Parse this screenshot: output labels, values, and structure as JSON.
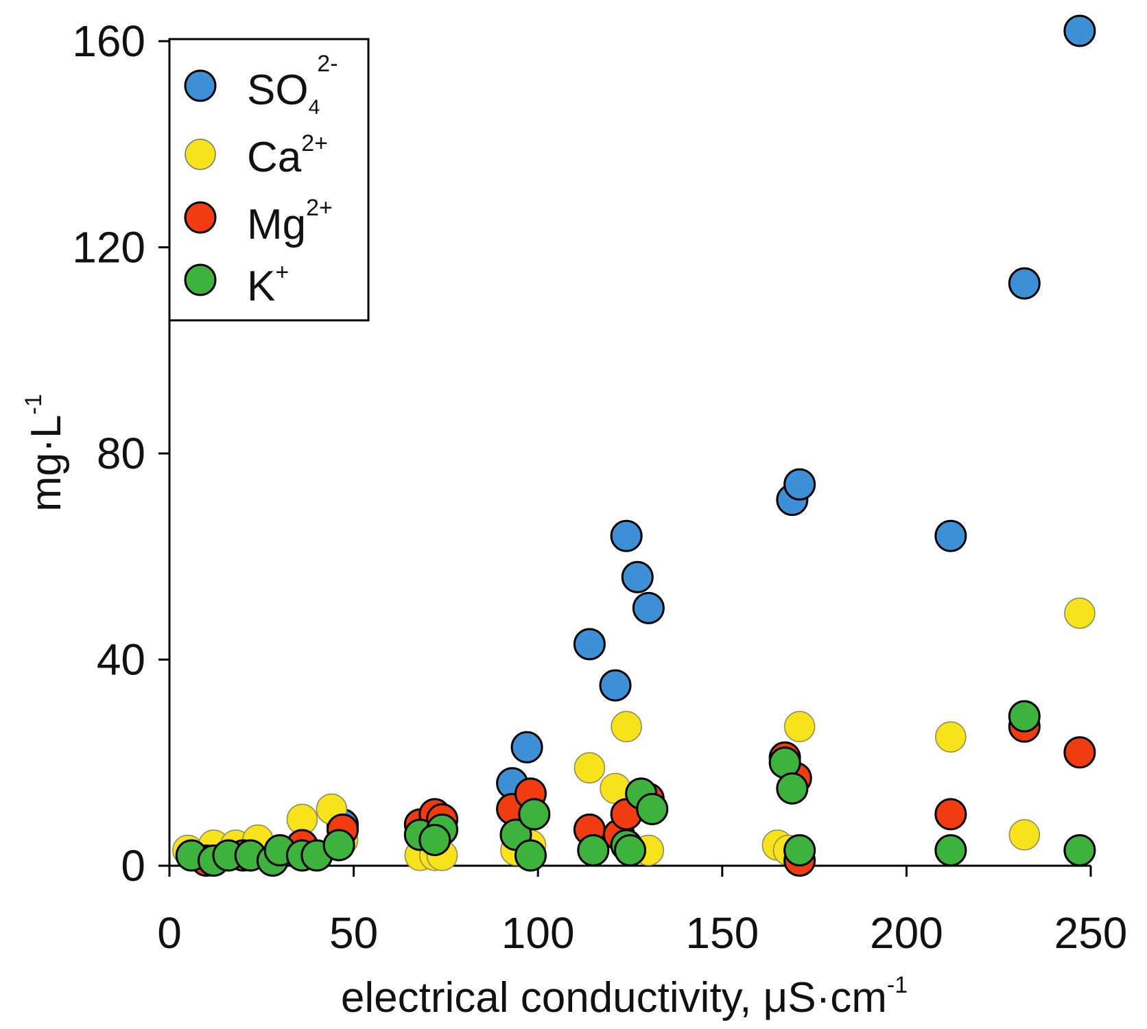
{
  "chart_data": {
    "type": "scatter",
    "title": "",
    "xlabel": "electrical conductivity, μS·cm",
    "xlabel_sup": "-1",
    "ylabel": "mg·L",
    "ylabel_sup": "-1",
    "xlim": [
      0,
      250
    ],
    "ylim": [
      0,
      160
    ],
    "x_ticks": [
      0,
      50,
      100,
      150,
      200,
      250
    ],
    "y_ticks": [
      0,
      40,
      80,
      120,
      160
    ],
    "x_tick_labels": [
      "0",
      "50",
      "100",
      "150",
      "200",
      "250"
    ],
    "y_tick_labels": [
      "0",
      "40",
      "80",
      "120",
      "160"
    ],
    "grid": false,
    "legend_position": "top-left",
    "series": [
      {
        "name": "SO4 2-",
        "label": "SO",
        "label_sub": "4",
        "label_sup": "2-",
        "color": "#3d8fd6",
        "points": [
          [
            47,
            8
          ],
          [
            93,
            16
          ],
          [
            97,
            23
          ],
          [
            114,
            43
          ],
          [
            121,
            35
          ],
          [
            124,
            64
          ],
          [
            127,
            56
          ],
          [
            130,
            50
          ],
          [
            169,
            71
          ],
          [
            171,
            74
          ],
          [
            212,
            64
          ],
          [
            232,
            113
          ],
          [
            247,
            162
          ]
        ]
      },
      {
        "name": "Ca 2+",
        "label": "Ca",
        "label_sup": "2+",
        "color": "#f7e21b",
        "points": [
          [
            5,
            3
          ],
          [
            12,
            4
          ],
          [
            18,
            4
          ],
          [
            24,
            5
          ],
          [
            36,
            9
          ],
          [
            44,
            11
          ],
          [
            47,
            5
          ],
          [
            68,
            2
          ],
          [
            72,
            2
          ],
          [
            74,
            2
          ],
          [
            94,
            3
          ],
          [
            98,
            4
          ],
          [
            114,
            19
          ],
          [
            121,
            15
          ],
          [
            124,
            27
          ],
          [
            130,
            3
          ],
          [
            165,
            4
          ],
          [
            168,
            3
          ],
          [
            171,
            27
          ],
          [
            212,
            25
          ],
          [
            232,
            6
          ],
          [
            247,
            49
          ]
        ]
      },
      {
        "name": "Mg 2+",
        "label": "Mg",
        "label_sup": "2+",
        "color": "#f03c10",
        "points": [
          [
            10,
            1
          ],
          [
            20,
            2
          ],
          [
            36,
            4
          ],
          [
            47,
            7
          ],
          [
            68,
            8
          ],
          [
            72,
            10
          ],
          [
            74,
            9
          ],
          [
            93,
            11
          ],
          [
            98,
            14
          ],
          [
            114,
            7
          ],
          [
            122,
            6
          ],
          [
            124,
            10
          ],
          [
            130,
            13
          ],
          [
            167,
            21
          ],
          [
            170,
            17
          ],
          [
            171,
            1
          ],
          [
            212,
            10
          ],
          [
            232,
            27
          ],
          [
            247,
            22
          ]
        ]
      },
      {
        "name": "K+",
        "label": "K",
        "label_sup": "+",
        "color": "#3db33d",
        "points": [
          [
            6,
            2
          ],
          [
            12,
            1
          ],
          [
            16,
            2
          ],
          [
            22,
            2
          ],
          [
            28,
            1
          ],
          [
            30,
            3
          ],
          [
            36,
            2
          ],
          [
            40,
            2
          ],
          [
            46,
            4
          ],
          [
            68,
            6
          ],
          [
            74,
            7
          ],
          [
            72,
            5
          ],
          [
            94,
            6
          ],
          [
            98,
            2
          ],
          [
            99,
            10
          ],
          [
            115,
            3
          ],
          [
            124,
            4
          ],
          [
            125,
            3
          ],
          [
            128,
            14
          ],
          [
            131,
            11
          ],
          [
            167,
            20
          ],
          [
            169,
            15
          ],
          [
            171,
            3
          ],
          [
            212,
            3
          ],
          [
            232,
            29
          ],
          [
            247,
            3
          ]
        ]
      }
    ]
  }
}
